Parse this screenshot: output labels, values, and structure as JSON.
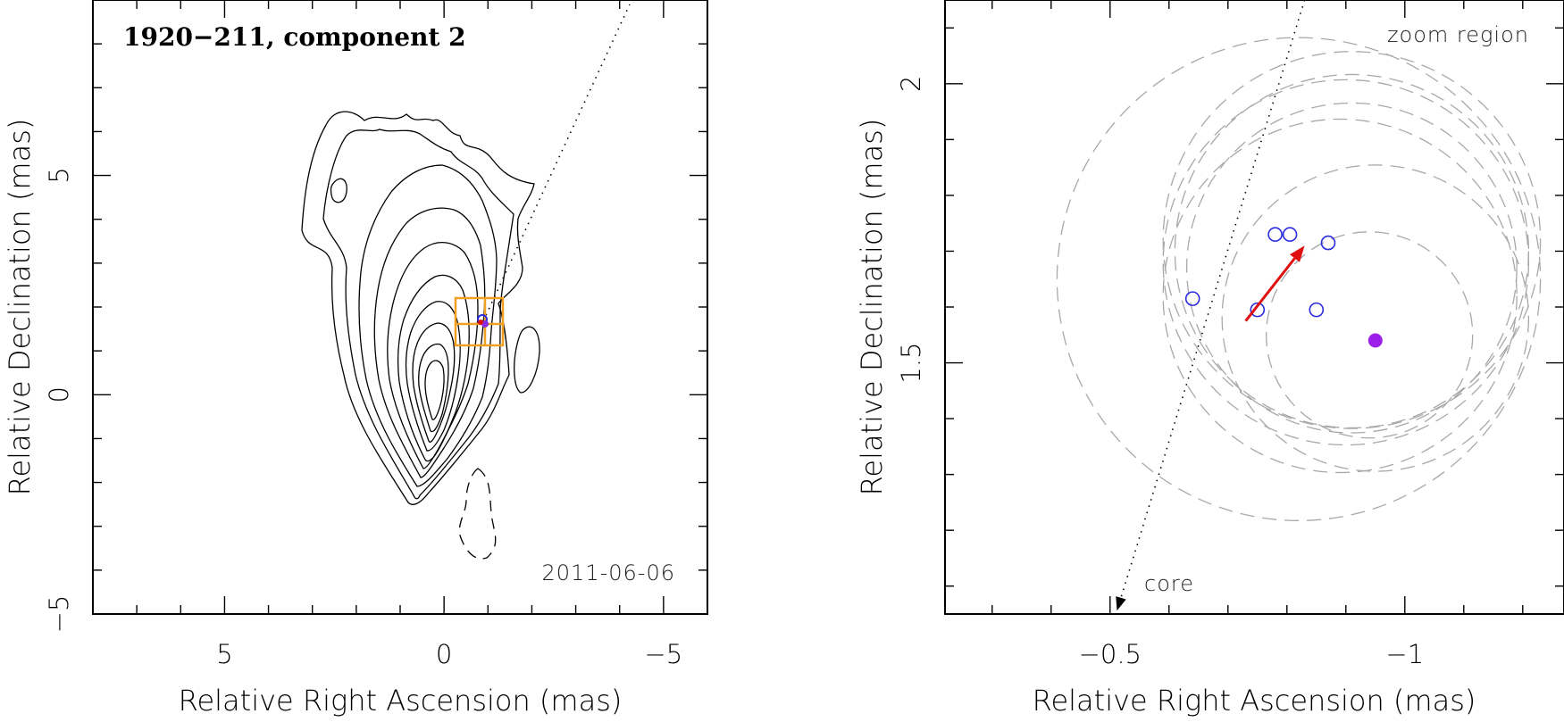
{
  "chart_data": [
    {
      "type": "contour",
      "panel": "left",
      "title": "1920−211, component 2",
      "xlabel": "Relative Right Ascension (mas)",
      "ylabel": "Relative Declination (mas)",
      "xlim": [
        8,
        -6
      ],
      "ylim": [
        -5,
        9
      ],
      "xticks": [
        5,
        0,
        -5
      ],
      "xtick_labels": [
        "5",
        "0",
        "−5"
      ],
      "yticks": [
        5,
        0,
        -5
      ],
      "ytick_labels": [
        "5",
        "0",
        "−5"
      ],
      "date": "2011-06-06",
      "component_position": {
        "x": -0.88,
        "y": 1.55
      },
      "zoom_box": {
        "x": [
          -0.3,
          -1.3
        ],
        "y": [
          1.1,
          2.2
        ]
      },
      "jet_axis": [
        [
          -0.88,
          1.55
        ],
        [
          -4.3,
          8.9
        ]
      ]
    },
    {
      "type": "scatter",
      "panel": "right",
      "annotation": "zoom region",
      "core_label": "core",
      "xlabel": "Relative Right Ascension (mas)",
      "ylabel": "Relative Declination (mas)",
      "xlim": [
        -0.22,
        -1.27
      ],
      "ylim": [
        1.05,
        2.15
      ],
      "xticks": [
        -0.5,
        -1
      ],
      "xtick_labels": [
        "−0.5",
        "−1"
      ],
      "yticks": [
        2,
        1.5
      ],
      "ytick_labels": [
        "2",
        "1.5"
      ],
      "observed_positions": [
        {
          "x": -0.64,
          "y": 1.615
        },
        {
          "x": -0.78,
          "y": 1.73
        },
        {
          "x": -0.805,
          "y": 1.73
        },
        {
          "x": -0.87,
          "y": 1.715
        },
        {
          "x": -0.75,
          "y": 1.595
        },
        {
          "x": -0.85,
          "y": 1.595
        }
      ],
      "filled_point": {
        "x": -0.95,
        "y": 1.54
      },
      "motion_vector": {
        "from": {
          "x": -0.73,
          "y": 1.575
        },
        "to": {
          "x": -0.83,
          "y": 1.71
        }
      },
      "uncertainty_circles": [
        {
          "x": -0.82,
          "y": 1.65,
          "r": 0.41
        },
        {
          "x": -0.91,
          "y": 1.72,
          "r": 0.32
        },
        {
          "x": -0.9,
          "y": 1.68,
          "r": 0.31
        },
        {
          "x": -0.91,
          "y": 1.7,
          "r": 0.3
        },
        {
          "x": -0.89,
          "y": 1.62,
          "r": 0.3
        },
        {
          "x": -0.91,
          "y": 1.67,
          "r": 0.28
        },
        {
          "x": -0.95,
          "y": 1.58,
          "r": 0.26
        },
        {
          "x": -0.94,
          "y": 1.55,
          "r": 0.175
        }
      ],
      "core_direction": {
        "from": {
          "x": -0.83,
          "y": 2.15
        },
        "to": {
          "x": -0.51,
          "y": 1.05
        }
      }
    }
  ]
}
